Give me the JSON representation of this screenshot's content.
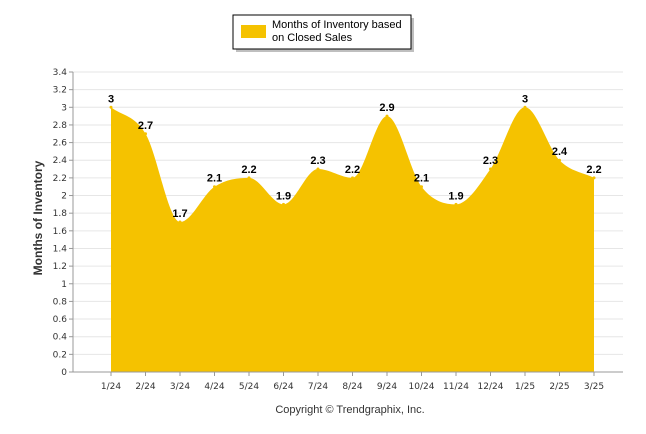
{
  "chart_data": {
    "type": "area",
    "title": "",
    "xlabel": "",
    "ylabel": "Months of Inventory",
    "categories": [
      "1/24",
      "2/24",
      "3/24",
      "4/24",
      "5/24",
      "6/24",
      "7/24",
      "8/24",
      "9/24",
      "10/24",
      "11/24",
      "12/24",
      "1/25",
      "2/25",
      "3/25"
    ],
    "series": [
      {
        "name": "Months of Inventory based on Closed Sales",
        "values": [
          3,
          2.7,
          1.7,
          2.1,
          2.2,
          1.9,
          2.3,
          2.2,
          2.9,
          2.1,
          1.9,
          2.3,
          3,
          2.4,
          2.2
        ],
        "color": "#f5c200"
      }
    ],
    "ylim": [
      0,
      3.4
    ],
    "yticks": [
      "0",
      "0.2",
      "0.4",
      "0.6",
      "0.8",
      "1",
      "1.2",
      "1.4",
      "1.6",
      "1.8",
      "2",
      "2.2",
      "2.4",
      "2.6",
      "2.8",
      "3",
      "3.2",
      "3.4"
    ],
    "grid": true,
    "legend_position": "top-center",
    "data_labels": [
      "3",
      "2.7",
      "1.7",
      "2.1",
      "2.2",
      "1.9",
      "2.3",
      "2.2",
      "2.9",
      "2.1",
      "1.9",
      "2.3",
      "3",
      "2.4",
      "2.2"
    ]
  },
  "legend": {
    "label_line1": "Months of Inventory based",
    "label_line2": "on Closed Sales"
  },
  "footer": {
    "copyright": "Copyright © Trendgraphix, Inc."
  }
}
